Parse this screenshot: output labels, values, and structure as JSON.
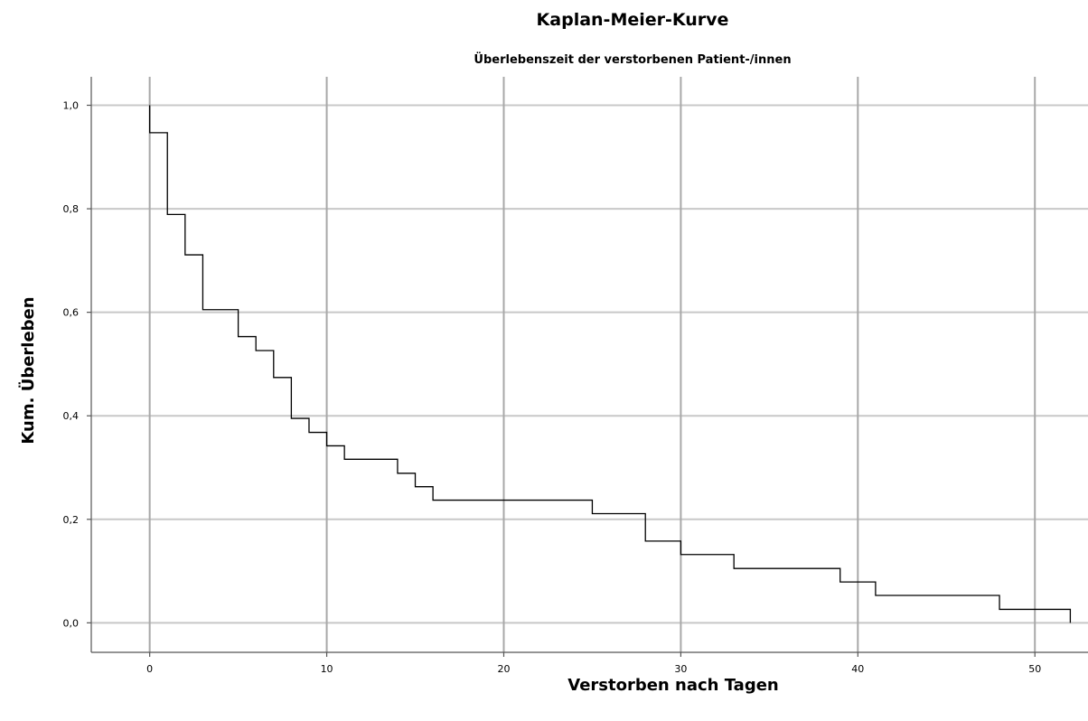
{
  "chart_data": {
    "type": "line",
    "step": true,
    "title": "Kaplan-Meier-Kurve",
    "subtitle": "Überlebenszeit der verstorbenen Patient-/innen",
    "xlabel": "Verstorben nach Tagen",
    "ylabel": "Kum. Überleben",
    "xlim": [
      -3.3,
      53
    ],
    "ylim": [
      -0.057,
      1.055
    ],
    "x_ticks": [
      0,
      10,
      20,
      30,
      40,
      50
    ],
    "x_tick_labels": [
      "0",
      "10",
      "20",
      "30",
      "40",
      "50"
    ],
    "y_ticks": [
      0.0,
      0.2,
      0.4,
      0.6,
      0.8,
      1.0
    ],
    "y_tick_labels": [
      "0,0",
      "0,2",
      "0,4",
      "0,6",
      "0,8",
      "1,0"
    ],
    "grid": true,
    "series": [
      {
        "x": [
          0,
          1,
          2,
          3,
          5,
          6,
          7,
          8,
          9,
          10,
          11,
          14,
          15,
          16,
          25,
          28,
          30,
          33,
          39,
          41,
          48,
          52
        ],
        "y": [
          0.947,
          0.789,
          0.711,
          0.605,
          0.553,
          0.526,
          0.474,
          0.395,
          0.368,
          0.342,
          0.316,
          0.289,
          0.263,
          0.237,
          0.211,
          0.158,
          0.132,
          0.105,
          0.079,
          0.053,
          0.026,
          0.0
        ]
      }
    ],
    "colors": {
      "curve": "#000000",
      "grid": "#c8c8c8"
    }
  }
}
